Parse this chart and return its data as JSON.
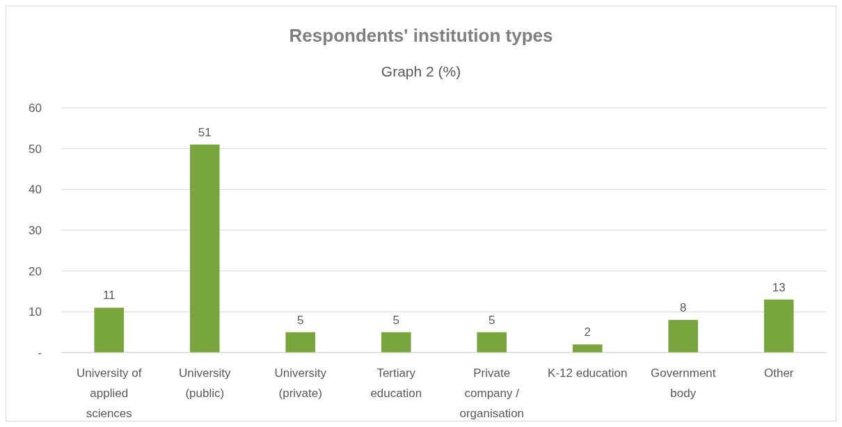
{
  "chart_data": {
    "type": "bar",
    "title": "Respondents' institution types",
    "subtitle": "Graph 2 (%)",
    "categories": [
      "University of applied sciences",
      "University (public)",
      "University (private)",
      "Tertiary education",
      "Private company / organisation",
      "K-12 education",
      "Government body",
      "Other"
    ],
    "values": [
      11,
      51,
      5,
      5,
      5,
      2,
      8,
      13
    ],
    "color": "#78a53d",
    "ylim": [
      0,
      60
    ],
    "yticks": [
      {
        "value": 0,
        "label": "-"
      },
      10,
      20,
      30,
      40,
      50,
      60
    ],
    "grid": "y",
    "data_labels": true
  }
}
